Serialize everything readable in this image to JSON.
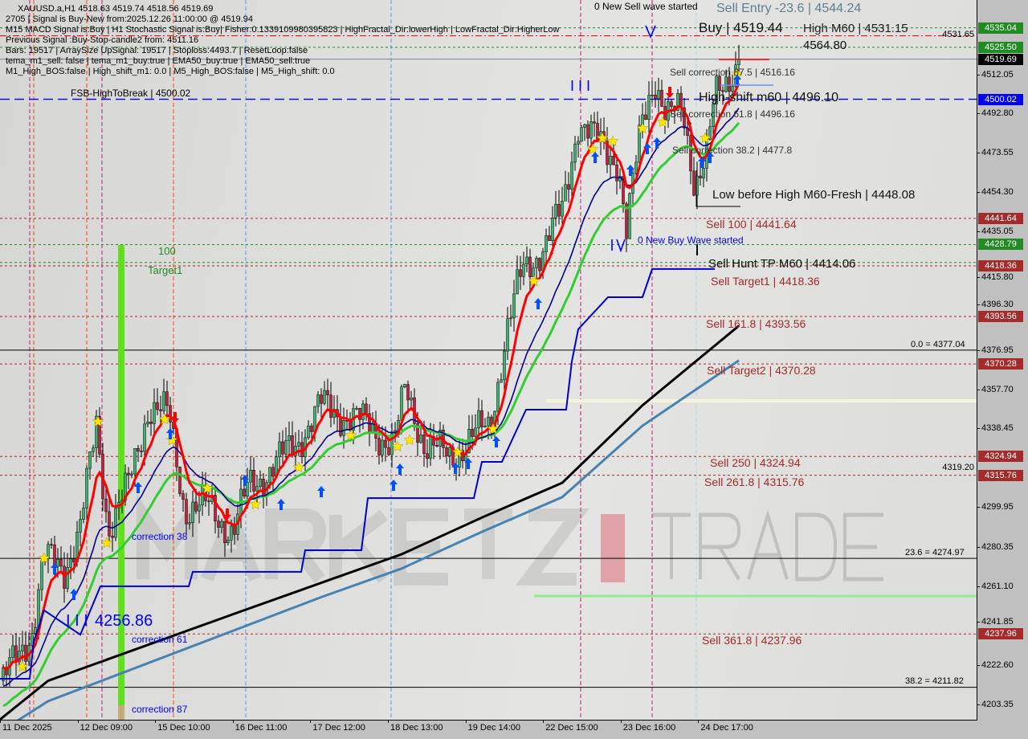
{
  "header": {
    "symbol_line": "XAUUSD.a,H1  4518.63 4519.74 4518.56 4519.69",
    "lines": [
      "2705 | Signal is Buy-New from:2025.12.26 11:00:00 @ 4519.94",
      "M15 MACD Signal is:Buy | H1 Stochastic Signal is:Buy| Fisher:0.1339109980395823 | HighFractal_Dir:lowerHigh | LowFractal_Dir:HigherLow",
      "Previous Signal :Buy-Stop-candle2 from: 4511.16",
      "Bars: 19517 | ArraySize UpSignal: 19517 | Stoploss:4493.7 | ResetLoop:false",
      "tema_m1_sell: false | tema_m1_buy:true | EMA50_buy:true | EMA50_sell:true",
      "M1_High_BOS:false | High_shift_m1: 0.0 | M5_High_BOS:false | M5_High_shift: 0.0"
    ]
  },
  "colors": {
    "bull": "#3cb371",
    "bear": "#c8203c",
    "ema_fast": "#ff0000",
    "ema_mid": "#00008b",
    "ema_slow": "#32cd32",
    "ma_long": "#000000",
    "ma_longer": "#4682b4",
    "tag_green": "#228b22",
    "tag_red": "#a52a2a",
    "tag_blue": "#0000ff",
    "tag_black": "#000000"
  },
  "chart_labels": {
    "fsb": "FSB-HighToBreak | 4500.02",
    "new_sell_wave": "0 New Sell wave started",
    "sell_entry": "Sell Entry -23.6 | 4544.24",
    "buy_label": "Buy | 4519.44",
    "high_m60": "High M60 | 4531.15",
    "overlap_value": "4564.80",
    "sell_corr_875": "Sell correction 87.5 | 4516.16",
    "high_shift": "High-shift m60 | 4496.10",
    "sell_corr_618": "Sell correction 61.8 | 4496.16",
    "sell_corr_382": "Sell correction 38.2 | 4477.8",
    "low_before_high": "Low before High   M60-Fresh | 4448.08",
    "sell_100": "Sell 100 | 4441.64",
    "new_buy_wave": "0 New Buy Wave started",
    "sell_hunt": "Sell Hunt TP M60 | 4414.06",
    "sell_target1": "Sell Target1 | 4418.36",
    "sell_1618": "Sell 161.8 | 4393.56",
    "fib_0": "0.0 = 4377.04",
    "sell_target2": "Sell Target2 | 4370.28",
    "sell_250": "Sell  250 | 4324.94",
    "sell_2618": "Sell  261.8 | 4315.76",
    "fib_236": "23.6 = 4274.97",
    "sell_3618": "Sell  361.8 | 4237.96",
    "fib_382": "38.2 = 4211.82",
    "left_100": "100",
    "left_target1": "Target1",
    "correction_38": "correction 38",
    "correction_61": "correction 61",
    "correction_87": "correction 87",
    "buy_level": "4256.86",
    "wave_marks": "I I I"
  },
  "watermark": "MARKETZ TRADE",
  "chart_data": {
    "type": "candlestick",
    "symbol": "XAUUSD.a",
    "timeframe": "H1",
    "ylim": [
      4196,
      4549
    ],
    "y_ticks": [
      "4531.65",
      "4512.05",
      "4492.80",
      "4473.55",
      "4454.30",
      "4435.05",
      "4415.80",
      "4396.30",
      "4376.95",
      "4357.70",
      "4338.45",
      "4319.20",
      "4299.95",
      "4280.35",
      "4261.10",
      "4241.85",
      "4222.60",
      "4203.35"
    ],
    "x_ticks": [
      "11 Dec 2025",
      "12 Dec 09:00",
      "15 Dec 10:00",
      "16 Dec 11:00",
      "17 Dec 12:00",
      "18 Dec 13:00",
      "19 Dec 14:00",
      "22 Dec 15:00",
      "23 Dec 16:00",
      "24 Dec 17:00"
    ],
    "close_path": [
      4215,
      4240,
      4275,
      4270,
      4290,
      4340,
      4290,
      4310,
      4350,
      4345,
      4300,
      4300,
      4288,
      4310,
      4320,
      4332,
      4350,
      4345,
      4340,
      4330,
      4358,
      4330,
      4325,
      4335,
      4340,
      4385,
      4415,
      4430,
      4445,
      4490,
      4480,
      4470,
      4435,
      4490,
      4512,
      4490,
      4495,
      4460,
      4472,
      4500,
      4519.69
    ],
    "ma_long": [
      4196,
      4215,
      4249,
      4263,
      4277,
      4295,
      4312,
      4350,
      4389
    ],
    "ma_longer": [
      4190,
      4205,
      4241,
      4256,
      4270,
      4288,
      4305,
      4340,
      4372
    ],
    "support_step": [
      4216,
      4216,
      4234,
      4249.5,
      4237.6,
      4261.3,
      4261.3,
      4268.4,
      4268.4,
      4279,
      4279,
      4304.5,
      4304.5,
      4322.3,
      4322.3,
      4347.9,
      4347.9,
      4371.5,
      4387.3,
      4403,
      4403,
      4416.8,
      4416.8
    ],
    "price_tags": [
      {
        "value": "4535.04",
        "color": "#228b22"
      },
      {
        "value": "4525.50",
        "color": "#228b22"
      },
      {
        "value": "4519.69",
        "color": "#000000"
      },
      {
        "value": "4500.02",
        "color": "#0000ff"
      },
      {
        "value": "4441.64",
        "color": "#a52a2a"
      },
      {
        "value": "4428.79",
        "color": "#228b22"
      },
      {
        "value": "4418.36",
        "color": "#a52a2a"
      },
      {
        "value": "4393.56",
        "color": "#a52a2a"
      },
      {
        "value": "4370.28",
        "color": "#a52a2a"
      },
      {
        "value": "4324.94",
        "color": "#a52a2a"
      },
      {
        "value": "4315.76",
        "color": "#a52a2a"
      },
      {
        "value": "4237.96",
        "color": "#a52a2a"
      }
    ],
    "fib_levels": [
      4377.04,
      4274.97,
      4211.82
    ],
    "last_price": 4519.69
  }
}
